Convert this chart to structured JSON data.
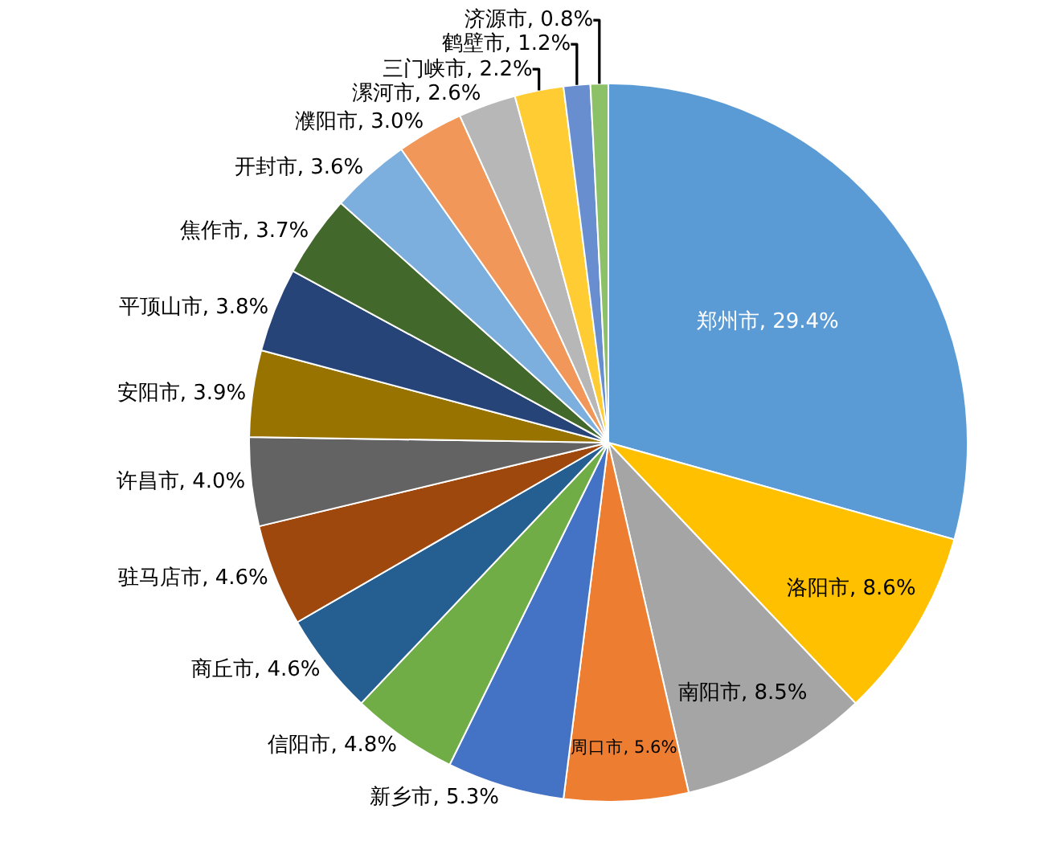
{
  "chart_data": {
    "type": "pie",
    "categories": [
      "郑州市",
      "洛阳市",
      "南阳市",
      "周口市",
      "新乡市",
      "信阳市",
      "商丘市",
      "驻马店市",
      "许昌市",
      "安阳市",
      "平顶山市",
      "焦作市",
      "开封市",
      "濮阳市",
      "漯河市",
      "三门峡市",
      "鹤壁市",
      "济源市"
    ],
    "values": [
      29.4,
      8.6,
      8.5,
      5.6,
      5.3,
      4.8,
      4.6,
      4.6,
      4.0,
      3.9,
      3.8,
      3.7,
      3.6,
      3.0,
      2.6,
      2.2,
      1.2,
      0.8
    ],
    "value_labels": [
      "29.4%",
      "8.6%",
      "8.5%",
      "5.6%",
      "5.3%",
      "4.8%",
      "4.6%",
      "4.6%",
      "4.0%",
      "3.9%",
      "3.8%",
      "3.7%",
      "3.6%",
      "3.0%",
      "2.6%",
      "2.2%",
      "1.2%",
      "0.8%"
    ],
    "colors": [
      "#5b9bd5",
      "#ffc000",
      "#a5a5a5",
      "#ed7d31",
      "#4472c4",
      "#70ad47",
      "#255e91",
      "#9e480e",
      "#636363",
      "#997300",
      "#264478",
      "#43682b",
      "#7cafdd",
      "#f1975a",
      "#b7b7b7",
      "#ffcd33",
      "#698ed0",
      "#8cc168"
    ],
    "legend": false
  }
}
